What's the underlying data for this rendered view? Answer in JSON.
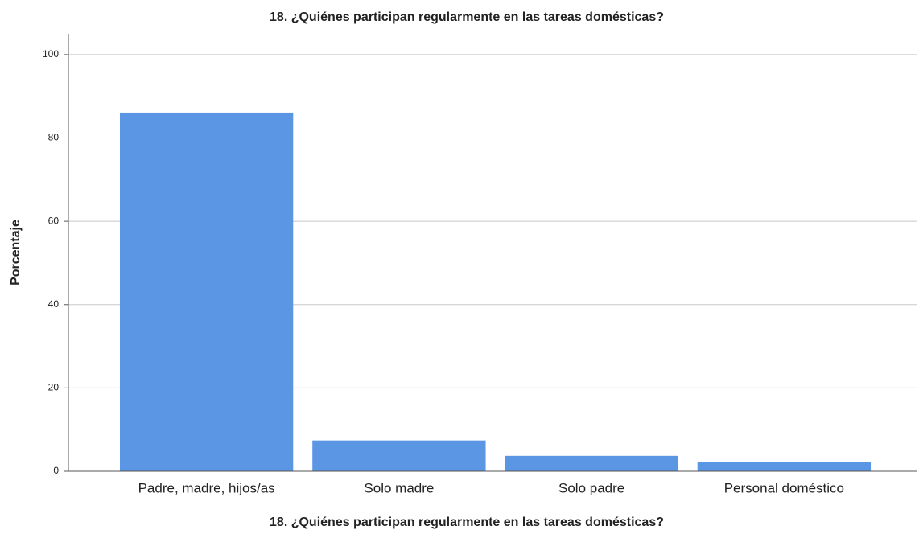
{
  "chart_data": {
    "type": "bar",
    "title": "18. ¿Quiénes participan regularmente en las tareas domésticas?",
    "x_label": "18. ¿Quiénes participan regularmente en las tareas domésticas?",
    "y_label": "Porcentaje",
    "categories": [
      "Padre, madre, hijos/as",
      "Solo madre",
      "Solo padre",
      "Personal doméstico"
    ],
    "values": [
      86.1,
      7.4,
      3.7,
      2.3
    ],
    "color": "#5b96e4",
    "ylim": [
      0,
      105
    ],
    "yticks": [
      0,
      20,
      40,
      60,
      80,
      100
    ],
    "grid": true
  }
}
